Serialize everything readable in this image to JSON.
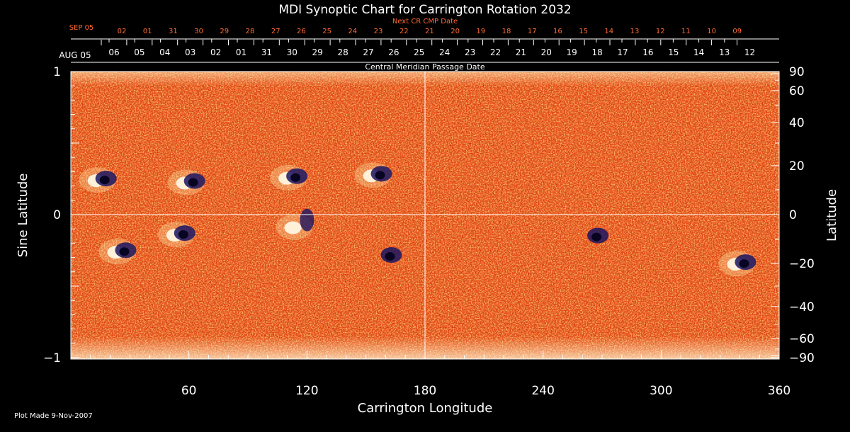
{
  "title": "MDI Synoptic Chart for Carrington Rotation 2032",
  "next_cr_label": "Next CR CMP Date",
  "next_cr_month": "SEP 05",
  "next_cr_days": [
    "02",
    "01",
    "31",
    "30",
    "29",
    "28",
    "27",
    "26",
    "25",
    "24",
    "23",
    "22",
    "21",
    "20",
    "19",
    "18",
    "17",
    "16",
    "15",
    "14",
    "13",
    "12",
    "11",
    "10",
    "09"
  ],
  "cmp_month": "AUG 05",
  "cmp_days": [
    "06",
    "05",
    "04",
    "03",
    "02",
    "01",
    "31",
    "30",
    "29",
    "28",
    "27",
    "26",
    "25",
    "24",
    "23",
    "22",
    "21",
    "20",
    "19",
    "18",
    "17",
    "16",
    "15",
    "14",
    "13",
    "12"
  ],
  "cmp_label": "Central Meridian Passage Date",
  "xlabel": "Carrington Longitude",
  "ylabel_left": "Sine Latitude",
  "ylabel_right": "Latitude",
  "plot_made": "Plot Made  9-Nov-2007",
  "colors": {
    "background": "#000000",
    "magnetogram_base": "#e8501a",
    "positive": "#fff4c8",
    "negative": "#1a1460",
    "accent_text": "#ff6a33",
    "axes": "#ffffff"
  },
  "chart_data": {
    "type": "heatmap",
    "x_range": [
      0,
      360
    ],
    "y_range_sine": [
      -1,
      1
    ],
    "x_ticks": [
      60,
      120,
      180,
      240,
      300,
      360
    ],
    "y_ticks_left": [
      {
        "value": 1,
        "label": "1"
      },
      {
        "value": 0,
        "label": "0"
      },
      {
        "value": -1,
        "label": "−1"
      }
    ],
    "y_ticks_right": [
      90,
      60,
      40,
      20,
      0,
      -20,
      -40,
      -60,
      -90
    ],
    "active_regions": [
      {
        "lon": 15,
        "lat": 14,
        "type": "bipole"
      },
      {
        "lon": 60,
        "lat": 13,
        "type": "bipole"
      },
      {
        "lon": 112,
        "lat": 15,
        "type": "bipole"
      },
      {
        "lon": 155,
        "lat": 16,
        "type": "bipole"
      },
      {
        "lon": 25,
        "lat": -15,
        "type": "bipole"
      },
      {
        "lon": 55,
        "lat": -8,
        "type": "bipole"
      },
      {
        "lon": 115,
        "lat": -5,
        "type": "plage"
      },
      {
        "lon": 160,
        "lat": -17,
        "type": "negative"
      },
      {
        "lon": 265,
        "lat": -9,
        "type": "negative"
      },
      {
        "lon": 340,
        "lat": -20,
        "type": "bipole"
      }
    ]
  }
}
